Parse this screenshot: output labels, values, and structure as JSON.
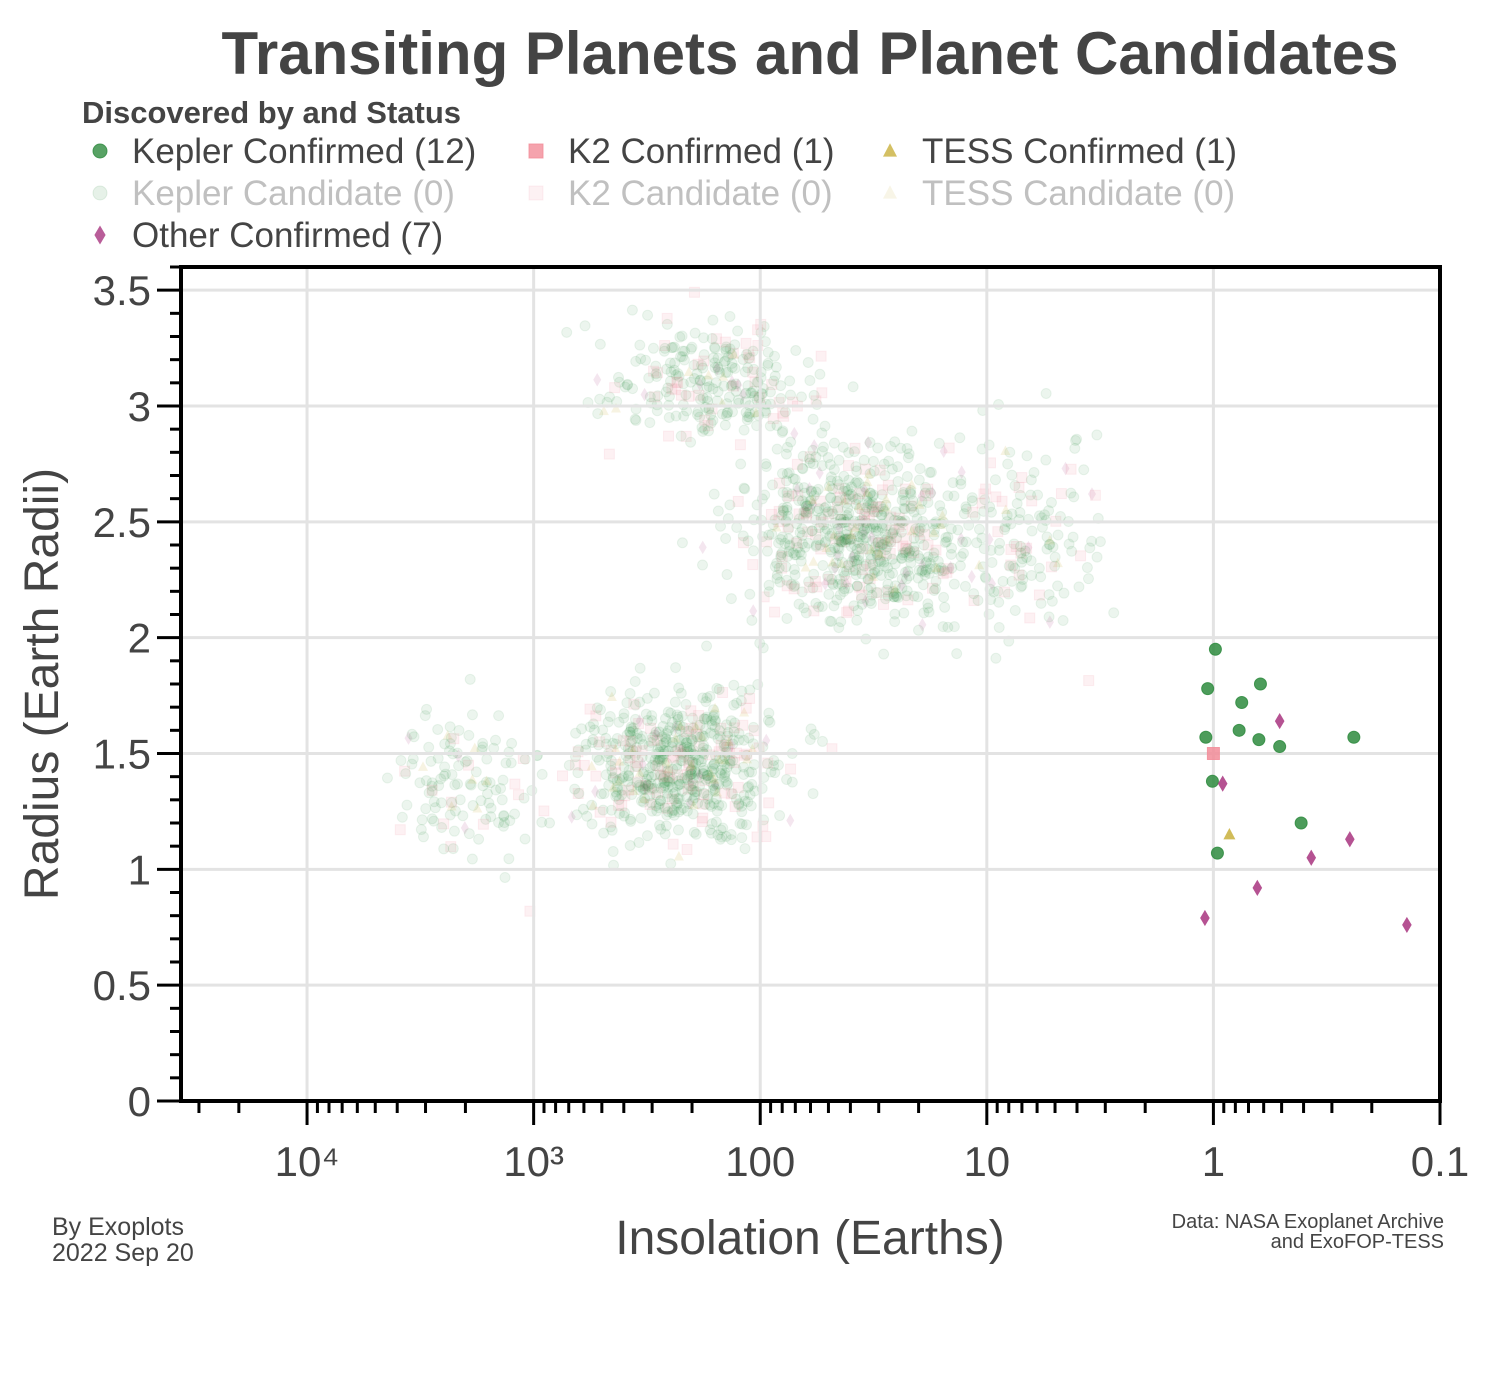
{
  "chart_data": {
    "type": "scatter",
    "title": "Transiting Planets and Planet Candidates",
    "xlabel": "Insolation (Earths)",
    "ylabel": "Radius (Earth Radii)",
    "x_scale": "log",
    "x_reversed": true,
    "xlim": [
      36000,
      0.1
    ],
    "ylim": [
      0,
      3.6
    ],
    "x_ticks": [
      {
        "value": 10000,
        "label": "10⁴"
      },
      {
        "value": 1000,
        "label": "10³"
      },
      {
        "value": 100,
        "label": "100"
      },
      {
        "value": 10,
        "label": "10"
      },
      {
        "value": 1,
        "label": "1"
      },
      {
        "value": 0.1,
        "label": "0.1"
      }
    ],
    "y_ticks": [
      {
        "value": 0,
        "label": "0"
      },
      {
        "value": 0.5,
        "label": "0.5"
      },
      {
        "value": 1,
        "label": "1"
      },
      {
        "value": 1.5,
        "label": "1.5"
      },
      {
        "value": 2,
        "label": "2"
      },
      {
        "value": 2.5,
        "label": "2.5"
      },
      {
        "value": 3,
        "label": "3"
      },
      {
        "value": 3.5,
        "label": "3.5"
      }
    ],
    "grid": true,
    "legend_title": "Discovered by and Status",
    "legend_placement": "top",
    "legend": [
      {
        "label": "Kepler Confirmed (12)",
        "marker": "circle",
        "color": "#2e8b3e",
        "faded": false
      },
      {
        "label": "K2 Confirmed (1)",
        "marker": "square",
        "color": "#f28c99",
        "faded": false
      },
      {
        "label": "TESS Confirmed (1)",
        "marker": "triangle",
        "color": "#c9b03c",
        "faded": false
      },
      {
        "label": "Kepler Candidate (0)",
        "marker": "circle",
        "color": "#2e8b3e",
        "faded": true
      },
      {
        "label": "K2 Candidate (0)",
        "marker": "square",
        "color": "#f28c99",
        "faded": true
      },
      {
        "label": "TESS Candidate (0)",
        "marker": "triangle",
        "color": "#c9b03c",
        "faded": true
      },
      {
        "label": "Other Confirmed (7)",
        "marker": "diamond",
        "color": "#a8347f",
        "faded": false
      }
    ],
    "series": [
      {
        "name": "Kepler Confirmed (12)",
        "marker": "circle",
        "color": "#2e8b3e",
        "points": [
          {
            "x": 0.98,
            "y": 1.95
          },
          {
            "x": 1.06,
            "y": 1.78
          },
          {
            "x": 0.75,
            "y": 1.72
          },
          {
            "x": 0.62,
            "y": 1.8
          },
          {
            "x": 0.77,
            "y": 1.6
          },
          {
            "x": 1.08,
            "y": 1.57
          },
          {
            "x": 0.63,
            "y": 1.56
          },
          {
            "x": 0.51,
            "y": 1.53
          },
          {
            "x": 0.24,
            "y": 1.57
          },
          {
            "x": 1.01,
            "y": 1.38
          },
          {
            "x": 0.41,
            "y": 1.2
          },
          {
            "x": 0.96,
            "y": 1.07
          }
        ]
      },
      {
        "name": "K2 Confirmed (1)",
        "marker": "square",
        "color": "#f28c99",
        "points": [
          {
            "x": 1.0,
            "y": 1.5
          }
        ]
      },
      {
        "name": "TESS Confirmed (1)",
        "marker": "triangle",
        "color": "#c9b03c",
        "points": [
          {
            "x": 0.85,
            "y": 1.15
          }
        ]
      },
      {
        "name": "Other Confirmed (7)",
        "marker": "diamond",
        "color": "#a8347f",
        "points": [
          {
            "x": 0.51,
            "y": 1.64
          },
          {
            "x": 0.91,
            "y": 1.37
          },
          {
            "x": 0.25,
            "y": 1.13
          },
          {
            "x": 0.37,
            "y": 1.05
          },
          {
            "x": 0.64,
            "y": 0.92
          },
          {
            "x": 1.09,
            "y": 0.79
          },
          {
            "x": 0.14,
            "y": 0.76
          }
        ]
      }
    ],
    "background_population": {
      "description_shown": false,
      "marker": "circle",
      "color": "#2e8b3e",
      "faded": true
    }
  },
  "credit": {
    "line1": "By Exoplots",
    "line2": "2022 Sep 20"
  },
  "source": {
    "line1": "Data: NASA Exoplanet Archive",
    "line2": "and ExoFOP-TESS"
  }
}
